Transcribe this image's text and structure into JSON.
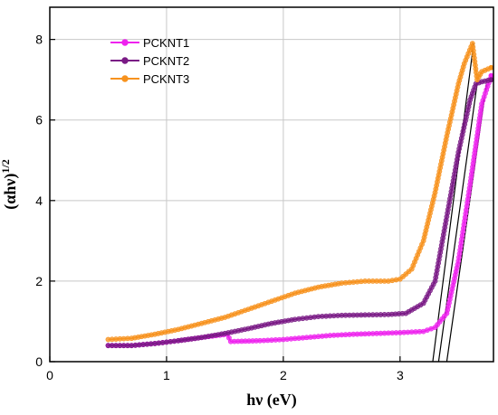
{
  "chart_data": {
    "type": "line",
    "xlabel": "hν (eV)",
    "ylabel_base": "(αhν)",
    "ylabel_sup": "1/2",
    "xlim": [
      0,
      3.8
    ],
    "ylim": [
      0,
      8.8
    ],
    "xticks": [
      0,
      1,
      2,
      3
    ],
    "yticks": [
      0,
      2,
      4,
      6,
      8
    ],
    "grid": true,
    "legend_position": "top-left",
    "colors": {
      "PCKNT1": "#ee22ee",
      "PCKNT2": "#7a1a85",
      "PCKNT3": "#f7921e",
      "fit": "#000000",
      "grid": "#c8c8c8"
    },
    "series": [
      {
        "name": "PCKNT1",
        "color": "#ee22ee",
        "x": [
          0.5,
          0.7,
          0.9,
          1.1,
          1.3,
          1.52,
          1.55,
          1.8,
          2.0,
          2.2,
          2.4,
          2.6,
          2.8,
          3.0,
          3.2,
          3.3,
          3.4,
          3.5,
          3.6,
          3.7,
          3.78
        ],
        "y": [
          0.4,
          0.4,
          0.45,
          0.52,
          0.6,
          0.68,
          0.5,
          0.52,
          0.55,
          0.6,
          0.65,
          0.68,
          0.7,
          0.72,
          0.75,
          0.85,
          1.2,
          2.5,
          4.4,
          6.4,
          7.1
        ]
      },
      {
        "name": "PCKNT2",
        "color": "#7a1a85",
        "x": [
          0.5,
          0.7,
          0.9,
          1.1,
          1.3,
          1.5,
          1.7,
          1.9,
          2.1,
          2.3,
          2.5,
          2.7,
          2.9,
          3.05,
          3.2,
          3.3,
          3.4,
          3.5,
          3.6,
          3.65,
          3.7,
          3.78
        ],
        "y": [
          0.4,
          0.4,
          0.45,
          0.52,
          0.6,
          0.7,
          0.82,
          0.95,
          1.05,
          1.12,
          1.15,
          1.16,
          1.17,
          1.2,
          1.45,
          2.0,
          3.6,
          5.2,
          6.5,
          6.9,
          6.95,
          7.0
        ]
      },
      {
        "name": "PCKNT3",
        "color": "#f7921e",
        "x": [
          0.5,
          0.7,
          0.9,
          1.1,
          1.3,
          1.5,
          1.7,
          1.9,
          2.1,
          2.3,
          2.5,
          2.7,
          2.9,
          3.0,
          3.1,
          3.2,
          3.3,
          3.4,
          3.5,
          3.55,
          3.62,
          3.66,
          3.7,
          3.78
        ],
        "y": [
          0.55,
          0.58,
          0.68,
          0.8,
          0.95,
          1.1,
          1.3,
          1.5,
          1.7,
          1.85,
          1.95,
          2.0,
          2.0,
          2.05,
          2.3,
          3.0,
          4.2,
          5.6,
          6.9,
          7.4,
          7.9,
          7.0,
          7.2,
          7.3
        ]
      }
    ],
    "fit_lines": [
      {
        "series": "PCKNT1",
        "x": [
          3.4,
          3.74
        ],
        "y": [
          0,
          6.9
        ]
      },
      {
        "series": "PCKNT2",
        "x": [
          3.33,
          3.66
        ],
        "y": [
          0,
          6.9
        ]
      },
      {
        "series": "PCKNT3",
        "x": [
          3.28,
          3.63
        ],
        "y": [
          0,
          7.9
        ]
      }
    ]
  }
}
